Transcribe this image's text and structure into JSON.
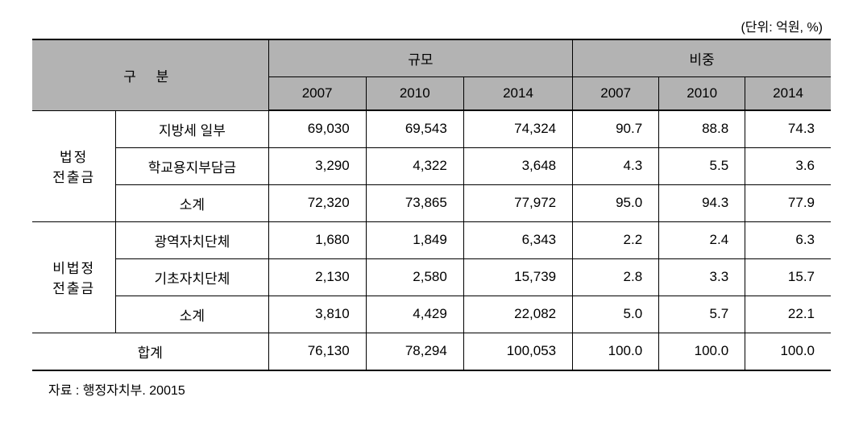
{
  "unit_label": "(단위: 억원, %)",
  "headers": {
    "category": "구  분",
    "group_scale": "규모",
    "group_ratio": "비중",
    "years": [
      "2007",
      "2010",
      "2014"
    ]
  },
  "groups": [
    {
      "label": "법정\n전출금",
      "rows": [
        {
          "label": "지방세 일부",
          "scale": [
            "69,030",
            "69,543",
            "74,324"
          ],
          "ratio": [
            "90.7",
            "88.8",
            "74.3"
          ]
        },
        {
          "label": "학교용지부담금",
          "scale": [
            "3,290",
            "4,322",
            "3,648"
          ],
          "ratio": [
            "4.3",
            "5.5",
            "3.6"
          ]
        },
        {
          "label": "소계",
          "scale": [
            "72,320",
            "73,865",
            "77,972"
          ],
          "ratio": [
            "95.0",
            "94.3",
            "77.9"
          ]
        }
      ]
    },
    {
      "label": "비법정\n전출금",
      "rows": [
        {
          "label": "광역자치단체",
          "scale": [
            "1,680",
            "1,849",
            "6,343"
          ],
          "ratio": [
            "2.2",
            "2.4",
            "6.3"
          ]
        },
        {
          "label": "기초자치단체",
          "scale": [
            "2,130",
            "2,580",
            "15,739"
          ],
          "ratio": [
            "2.8",
            "3.3",
            "15.7"
          ]
        },
        {
          "label": "소계",
          "scale": [
            "3,810",
            "4,429",
            "22,082"
          ],
          "ratio": [
            "5.0",
            "5.7",
            "22.1"
          ]
        }
      ]
    }
  ],
  "total": {
    "label": "합계",
    "scale": [
      "76,130",
      "78,294",
      "100,053"
    ],
    "ratio": [
      "100.0",
      "100.0",
      "100.0"
    ]
  },
  "source_note": "자료 : 행정자치부. 20015",
  "styling": {
    "header_bg": "#b3b3b3",
    "border_color": "#000000",
    "font_size_pt": 17,
    "note_font_size_pt": 16
  }
}
